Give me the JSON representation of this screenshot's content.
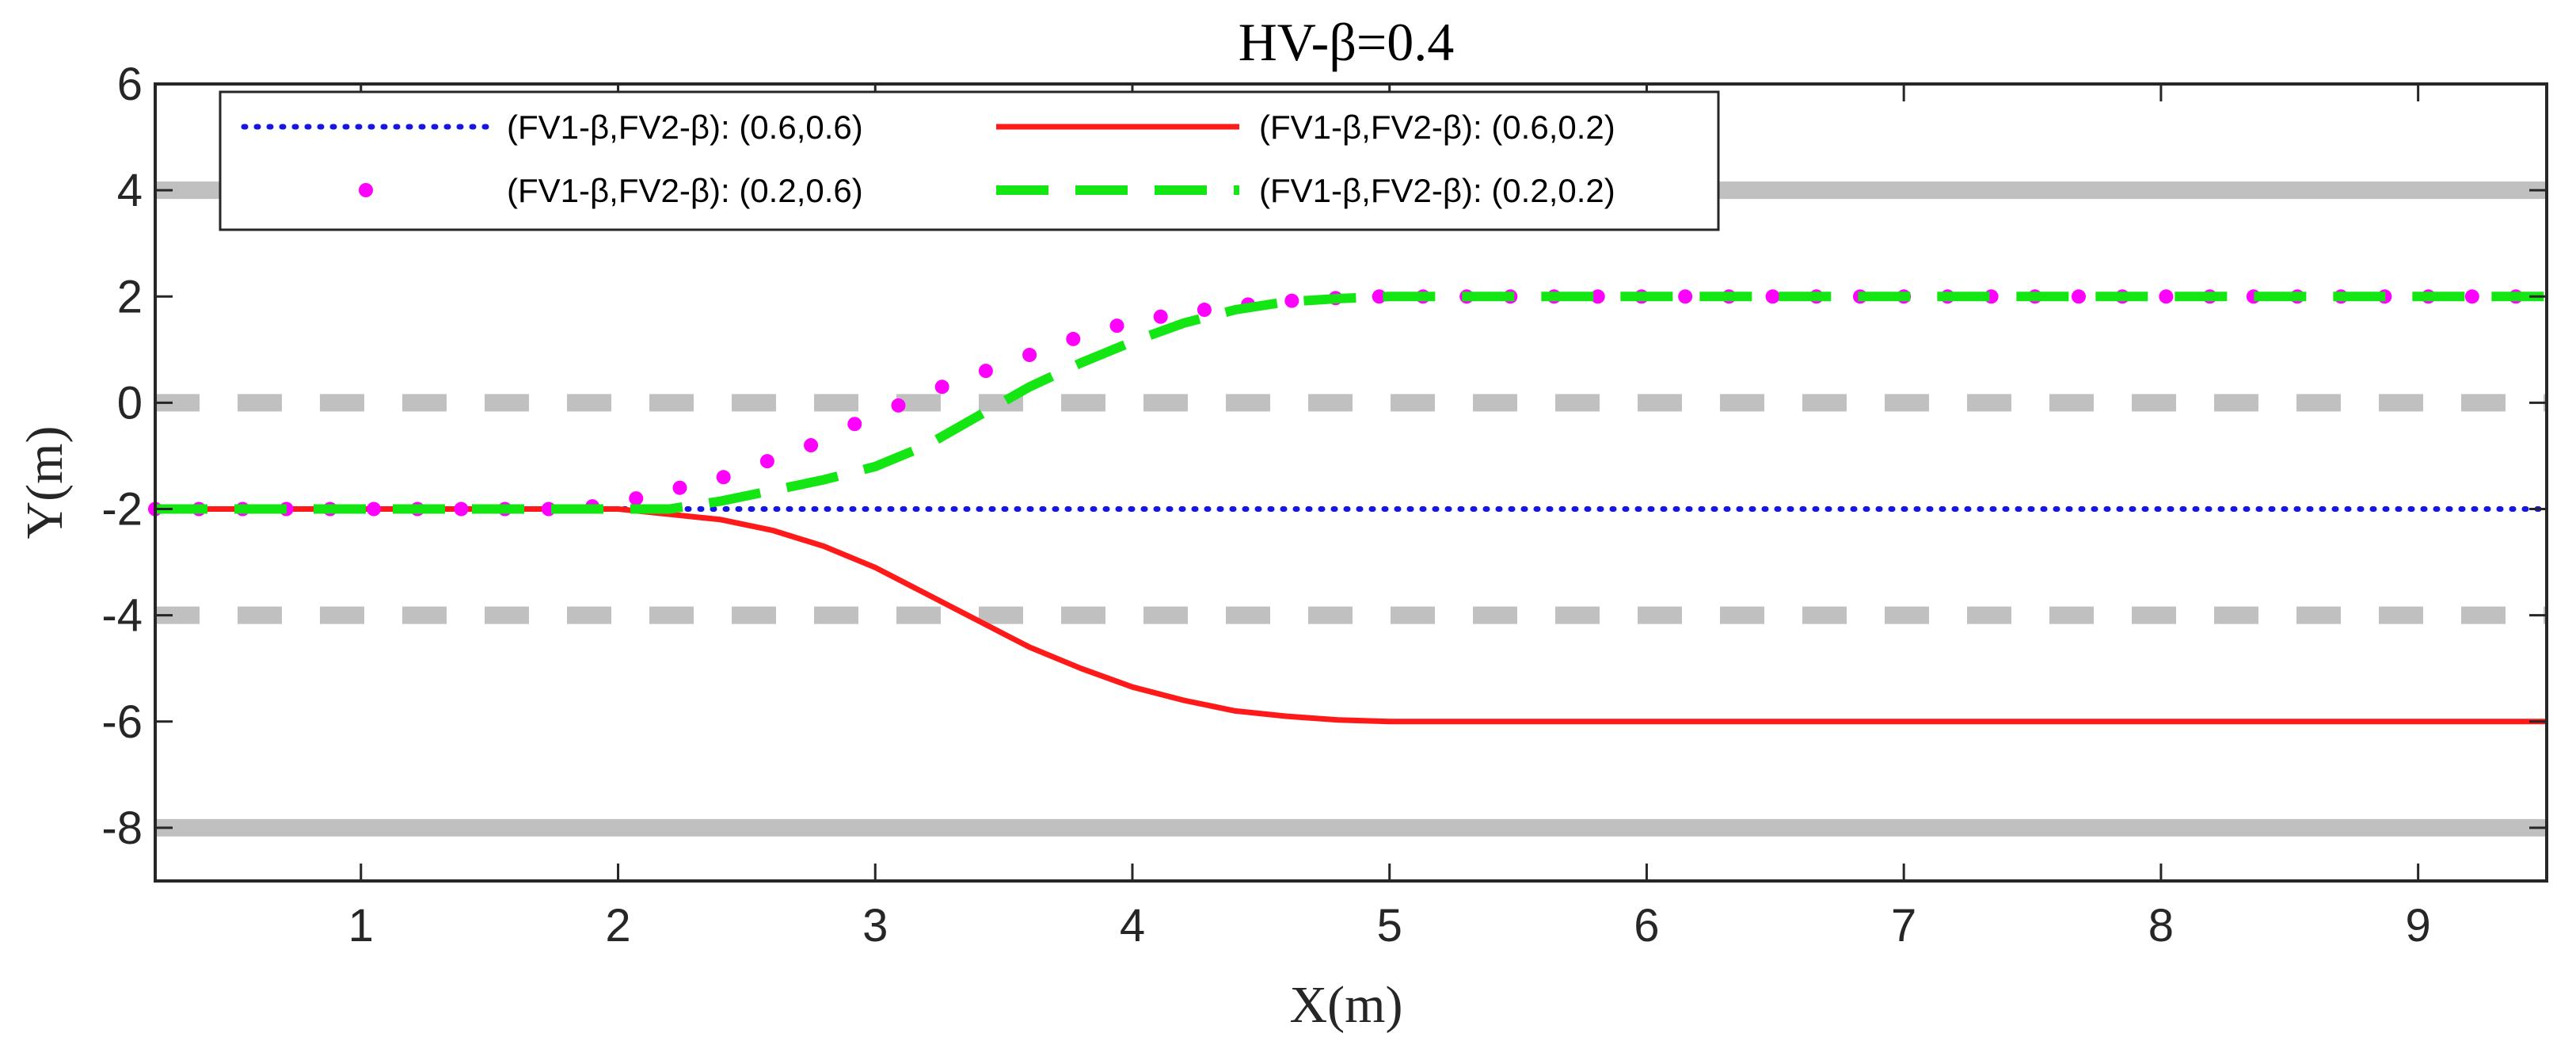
{
  "chart_data": {
    "type": "line",
    "title": "HV-β=0.4",
    "xlabel": "X(m)",
    "ylabel": "Y(m)",
    "xlim": [
      0.2,
      9.5
    ],
    "ylim": [
      -9,
      6
    ],
    "xticks": [
      1,
      2,
      3,
      4,
      5,
      6,
      7,
      8,
      9
    ],
    "yticks": [
      6,
      4,
      2,
      0,
      -2,
      -4,
      -6,
      -8
    ],
    "grid": false,
    "legend_position": "top-left",
    "lane_lines": [
      {
        "kind": "solid",
        "y": 4,
        "color": "#c0c0c0"
      },
      {
        "kind": "dashed",
        "y": 0,
        "color": "#c0c0c0"
      },
      {
        "kind": "dashed",
        "y": -4,
        "color": "#c0c0c0"
      },
      {
        "kind": "solid",
        "y": -8,
        "color": "#c0c0c0"
      }
    ],
    "series": [
      {
        "name": "(FV1-β,FV2-β): (0.6,0.6)",
        "style": "dotted",
        "color": "#1515e6",
        "x": [
          0.2,
          9.5
        ],
        "y": [
          -2,
          -2
        ]
      },
      {
        "name": "(FV1-β,FV2-β): (0.6,0.2)",
        "style": "solid",
        "color": "#ff1a1a",
        "x": [
          0.2,
          2.0,
          2.2,
          2.4,
          2.6,
          2.8,
          3.0,
          3.2,
          3.4,
          3.6,
          3.8,
          4.0,
          4.2,
          4.4,
          4.6,
          4.8,
          5.0,
          9.5
        ],
        "y": [
          -2,
          -2,
          -2.1,
          -2.2,
          -2.4,
          -2.7,
          -3.1,
          -3.6,
          -4.1,
          -4.6,
          -5.0,
          -5.35,
          -5.6,
          -5.8,
          -5.9,
          -5.97,
          -6,
          -6
        ]
      },
      {
        "name": "(FV1-β,FV2-β): (0.2,0.6)",
        "style": "markers",
        "color": "#ff00ff",
        "x": [
          0.2,
          0.37,
          0.54,
          0.71,
          0.88,
          1.05,
          1.22,
          1.39,
          1.56,
          1.73,
          1.9,
          2.07,
          2.24,
          2.41,
          2.58,
          2.75,
          2.92,
          3.09,
          3.26,
          3.43,
          3.6,
          3.77,
          3.94,
          4.11,
          4.28,
          4.45,
          4.62,
          4.79,
          4.96,
          5.13,
          5.3,
          5.47,
          5.64,
          5.81,
          5.98,
          6.15,
          6.32,
          6.49,
          6.66,
          6.83,
          7.0,
          7.17,
          7.34,
          7.51,
          7.68,
          7.85,
          8.02,
          8.19,
          8.36,
          8.53,
          8.7,
          8.87,
          9.04,
          9.21,
          9.38
        ],
        "y": [
          -2,
          -2,
          -2,
          -2,
          -2,
          -2,
          -2,
          -2,
          -2,
          -2,
          -1.95,
          -1.8,
          -1.6,
          -1.4,
          -1.1,
          -0.8,
          -0.4,
          -0.05,
          0.3,
          0.6,
          0.9,
          1.2,
          1.45,
          1.62,
          1.75,
          1.85,
          1.92,
          1.97,
          2,
          2,
          2,
          2,
          2,
          2,
          2,
          2,
          2,
          2,
          2,
          2,
          2,
          2,
          2,
          2,
          2,
          2,
          2,
          2,
          2,
          2,
          2,
          2,
          2,
          2,
          2
        ]
      },
      {
        "name": "(FV1-β,FV2-β): (0.2,0.2)",
        "style": "dashed",
        "color": "#14e614",
        "x": [
          0.2,
          2.2,
          2.4,
          2.6,
          2.8,
          3.0,
          3.2,
          3.4,
          3.6,
          3.8,
          4.0,
          4.2,
          4.4,
          4.6,
          4.8,
          5.0,
          5.2,
          9.5
        ],
        "y": [
          -2,
          -2,
          -1.85,
          -1.65,
          -1.45,
          -1.2,
          -0.8,
          -0.25,
          0.3,
          0.75,
          1.15,
          1.5,
          1.75,
          1.9,
          1.96,
          2,
          2,
          2
        ]
      }
    ]
  }
}
